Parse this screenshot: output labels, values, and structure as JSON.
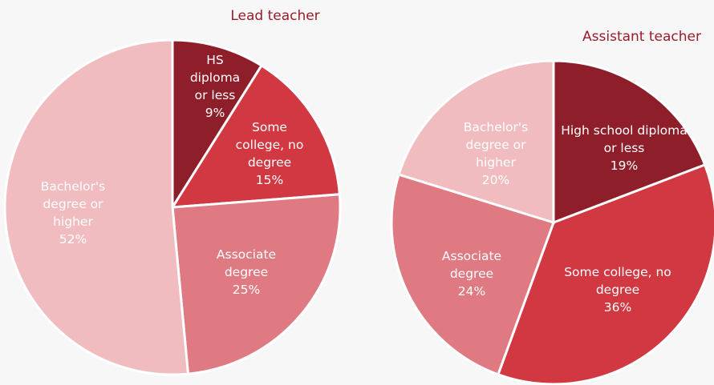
{
  "chart_data": [
    {
      "type": "pie",
      "title": "Lead teacher",
      "categories": [
        "HS diploma or less",
        "Some college, no degree",
        "Associate degree",
        "Bachelor's degree or higher"
      ],
      "values": [
        9,
        15,
        25,
        52
      ],
      "value_labels": [
        "9%",
        "15%",
        "25%",
        "52%"
      ],
      "colors": [
        "#8e1f2a",
        "#d13841",
        "#e07a82",
        "#f0bcc0"
      ]
    },
    {
      "type": "pie",
      "title": "Assistant teacher",
      "categories": [
        "High school diploma or less",
        "Some college, no degree",
        "Associate degree",
        "Bachelor's degree or higher"
      ],
      "values": [
        19,
        36,
        24,
        20
      ],
      "value_labels": [
        "19%",
        "36%",
        "24%",
        "20%"
      ],
      "colors": [
        "#8e1f2a",
        "#d13841",
        "#e07a82",
        "#f0bcc0"
      ]
    }
  ]
}
